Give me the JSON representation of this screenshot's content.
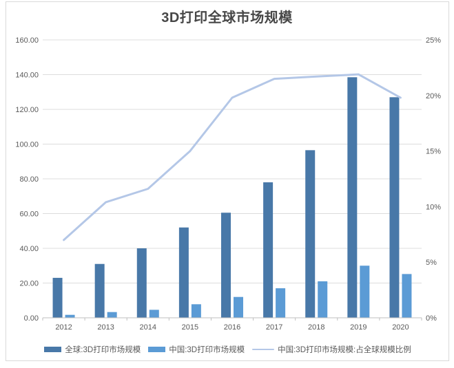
{
  "chart_data": {
    "type": "combo",
    "title": "3D打印全球市场规模",
    "categories": [
      "2012",
      "2013",
      "2014",
      "2015",
      "2016",
      "2017",
      "2018",
      "2019",
      "2020"
    ],
    "series": [
      {
        "name": "全球:3D打印市场规模",
        "type": "bar",
        "axis": "left",
        "color": "#4878a8",
        "values": [
          23,
          31,
          40,
          52,
          60.5,
          78,
          96.5,
          138.5,
          127
        ]
      },
      {
        "name": "中国:3D打印市场规模",
        "type": "bar",
        "axis": "left",
        "color": "#5b9bd5",
        "values": [
          1.7,
          3.3,
          4.6,
          7.8,
          12,
          17,
          21,
          30,
          25.2
        ]
      },
      {
        "name": "中国:3D打印市场规模:占全球规模比例",
        "type": "line",
        "axis": "right",
        "color": "#b4c7e7",
        "values": [
          7.0,
          10.4,
          11.6,
          15.0,
          19.8,
          21.5,
          21.7,
          21.9,
          19.8
        ]
      }
    ],
    "left_axis": {
      "min": 0,
      "max": 160,
      "step": 20,
      "labels": [
        "0.00",
        "20.00",
        "40.00",
        "60.00",
        "80.00",
        "100.00",
        "120.00",
        "140.00",
        "160.00"
      ]
    },
    "right_axis": {
      "min": 0,
      "max": 25,
      "step": 5,
      "labels": [
        "0%",
        "5%",
        "10%",
        "15%",
        "20%",
        "25%"
      ]
    },
    "grid": true,
    "legend_position": "bottom",
    "colors": {
      "grid_line": "#dcdcdc",
      "axis_line": "#bfbfbf",
      "tick_label": "#595959",
      "title_text": "#474747",
      "frame_border": "#d9d9d9",
      "background": "#ffffff"
    }
  }
}
